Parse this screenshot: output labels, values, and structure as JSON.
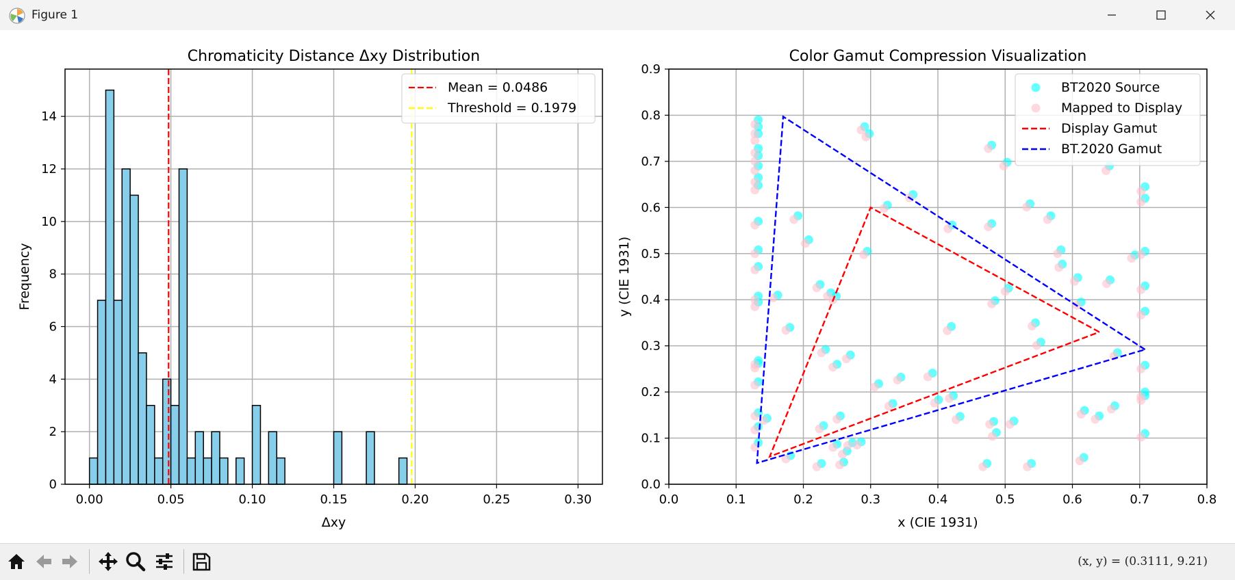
{
  "window": {
    "title": "Figure 1",
    "icons": {
      "app": "matplotlib-icon",
      "minimize": "minimize-icon",
      "maximize": "maximize-icon",
      "close": "close-icon"
    }
  },
  "toolbar": {
    "buttons": [
      "home-icon",
      "back-arrow-icon",
      "forward-arrow-icon",
      "pan-icon",
      "zoom-icon",
      "configure-subplots-icon",
      "save-icon"
    ],
    "coordinates": "(x, y) = (0.3111, 9.21)"
  },
  "chart_data": [
    {
      "type": "bar",
      "title": "Chromaticity Distance Δxy Distribution",
      "xlabel": "Δxy",
      "ylabel": "Frequency",
      "xlim": [
        -0.015,
        0.315
      ],
      "ylim": [
        0,
        15.8
      ],
      "xticks": [
        "0.00",
        "0.05",
        "0.10",
        "0.15",
        "0.20",
        "0.25",
        "0.30"
      ],
      "yticks": [
        "0",
        "2",
        "4",
        "6",
        "8",
        "10",
        "12",
        "14"
      ],
      "grid": true,
      "bar_color": "#87ceeb",
      "bin_start": 0.0,
      "bin_width": 0.005,
      "counts": [
        1,
        7,
        15,
        7,
        12,
        11,
        5,
        3,
        1,
        4,
        3,
        12,
        1,
        2,
        1,
        2,
        1,
        0,
        1,
        0,
        3,
        0,
        2,
        1,
        0,
        0,
        0,
        0,
        0,
        0,
        2,
        0,
        0,
        0,
        2,
        0,
        0,
        0,
        1,
        0
      ],
      "vlines": [
        {
          "label": "Mean = 0.0486",
          "x": 0.0486,
          "color": "#ff0000"
        },
        {
          "label": "Threshold = 0.1979",
          "x": 0.1979,
          "color": "#ffff00"
        }
      ],
      "legend_position": "top-right"
    },
    {
      "type": "scatter",
      "title": "Color Gamut Compression Visualization",
      "xlabel": "x (CIE 1931)",
      "ylabel": "y (CIE 1931)",
      "xlim": [
        0.0,
        0.8
      ],
      "ylim": [
        0.0,
        0.9
      ],
      "xticks": [
        "0.0",
        "0.1",
        "0.2",
        "0.3",
        "0.4",
        "0.5",
        "0.6",
        "0.7",
        "0.8"
      ],
      "yticks": [
        "0.0",
        "0.1",
        "0.2",
        "0.3",
        "0.4",
        "0.5",
        "0.6",
        "0.7",
        "0.8",
        "0.9"
      ],
      "grid": true,
      "legend_position": "top-right",
      "series": [
        {
          "name": "BT2020 Source",
          "color": "#00ffff",
          "alpha": 0.6,
          "style": "points"
        },
        {
          "name": "Mapped to Display",
          "color": "#ffc0cb",
          "alpha": 0.6,
          "style": "points"
        },
        {
          "name": "Display Gamut",
          "color": "#ff0000",
          "style": "dashed-line"
        },
        {
          "name": "BT.2020 Gamut",
          "color": "#0000ff",
          "style": "dashed-line"
        }
      ],
      "display_gamut": [
        [
          0.64,
          0.33
        ],
        [
          0.3,
          0.6
        ],
        [
          0.15,
          0.06
        ],
        [
          0.64,
          0.33
        ]
      ],
      "bt2020_gamut": [
        [
          0.708,
          0.292
        ],
        [
          0.17,
          0.797
        ],
        [
          0.131,
          0.046
        ],
        [
          0.708,
          0.292
        ]
      ],
      "points": [
        [
          0.133,
          0.79,
          0.128,
          0.78
        ],
        [
          0.133,
          0.775,
          0.128,
          0.76
        ],
        [
          0.133,
          0.76,
          0.128,
          0.745
        ],
        [
          0.133,
          0.728,
          0.128,
          0.718
        ],
        [
          0.133,
          0.712,
          0.128,
          0.7
        ],
        [
          0.133,
          0.69,
          0.128,
          0.68
        ],
        [
          0.133,
          0.665,
          0.128,
          0.655
        ],
        [
          0.133,
          0.648,
          0.128,
          0.638
        ],
        [
          0.133,
          0.57,
          0.128,
          0.562
        ],
        [
          0.133,
          0.508,
          0.128,
          0.5
        ],
        [
          0.133,
          0.472,
          0.128,
          0.465
        ],
        [
          0.133,
          0.408,
          0.128,
          0.4
        ],
        [
          0.133,
          0.395,
          0.128,
          0.385
        ],
        [
          0.133,
          0.268,
          0.128,
          0.26
        ],
        [
          0.133,
          0.262,
          0.128,
          0.252
        ],
        [
          0.133,
          0.222,
          0.128,
          0.215
        ],
        [
          0.133,
          0.155,
          0.128,
          0.148
        ],
        [
          0.133,
          0.125,
          0.128,
          0.118
        ],
        [
          0.133,
          0.09,
          0.128,
          0.08
        ],
        [
          0.146,
          0.143,
          0.141,
          0.138
        ],
        [
          0.162,
          0.41,
          0.155,
          0.404
        ],
        [
          0.18,
          0.34,
          0.174,
          0.334
        ],
        [
          0.181,
          0.062,
          0.174,
          0.055
        ],
        [
          0.192,
          0.582,
          0.186,
          0.574
        ],
        [
          0.208,
          0.53,
          0.203,
          0.522
        ],
        [
          0.225,
          0.433,
          0.22,
          0.426
        ],
        [
          0.227,
          0.045,
          0.22,
          0.038
        ],
        [
          0.23,
          0.127,
          0.224,
          0.12
        ],
        [
          0.233,
          0.292,
          0.227,
          0.285
        ],
        [
          0.241,
          0.415,
          0.236,
          0.408
        ],
        [
          0.249,
          0.408,
          0.244,
          0.4
        ],
        [
          0.25,
          0.26,
          0.244,
          0.254
        ],
        [
          0.25,
          0.087,
          0.244,
          0.08
        ],
        [
          0.255,
          0.148,
          0.25,
          0.141
        ],
        [
          0.26,
          0.048,
          0.254,
          0.042
        ],
        [
          0.265,
          0.072,
          0.258,
          0.065
        ],
        [
          0.27,
          0.28,
          0.264,
          0.272
        ],
        [
          0.273,
          0.09,
          0.266,
          0.084
        ],
        [
          0.286,
          0.092,
          0.28,
          0.085
        ],
        [
          0.291,
          0.775,
          0.286,
          0.768
        ],
        [
          0.295,
          0.505,
          0.29,
          0.498
        ],
        [
          0.298,
          0.76,
          0.293,
          0.753
        ],
        [
          0.312,
          0.218,
          0.306,
          0.211
        ],
        [
          0.325,
          0.605,
          0.32,
          0.598
        ],
        [
          0.333,
          0.175,
          0.327,
          0.169
        ],
        [
          0.345,
          0.232,
          0.34,
          0.226
        ],
        [
          0.363,
          0.628,
          0.358,
          0.621
        ],
        [
          0.392,
          0.241,
          0.385,
          0.233
        ],
        [
          0.401,
          0.183,
          0.395,
          0.176
        ],
        [
          0.42,
          0.342,
          0.414,
          0.333
        ],
        [
          0.421,
          0.562,
          0.415,
          0.554
        ],
        [
          0.423,
          0.192,
          0.417,
          0.186
        ],
        [
          0.433,
          0.147,
          0.427,
          0.14
        ],
        [
          0.473,
          0.045,
          0.467,
          0.038
        ],
        [
          0.48,
          0.735,
          0.475,
          0.728
        ],
        [
          0.48,
          0.565,
          0.475,
          0.558
        ],
        [
          0.483,
          0.136,
          0.477,
          0.13
        ],
        [
          0.485,
          0.398,
          0.48,
          0.391
        ],
        [
          0.487,
          0.112,
          0.481,
          0.104
        ],
        [
          0.503,
          0.698,
          0.498,
          0.69
        ],
        [
          0.505,
          0.425,
          0.5,
          0.418
        ],
        [
          0.513,
          0.137,
          0.507,
          0.13
        ],
        [
          0.537,
          0.608,
          0.532,
          0.601
        ],
        [
          0.539,
          0.045,
          0.533,
          0.038
        ],
        [
          0.545,
          0.35,
          0.54,
          0.343
        ],
        [
          0.553,
          0.308,
          0.547,
          0.301
        ],
        [
          0.568,
          0.582,
          0.563,
          0.574
        ],
        [
          0.583,
          0.508,
          0.578,
          0.5
        ],
        [
          0.585,
          0.477,
          0.58,
          0.47
        ],
        [
          0.608,
          0.448,
          0.603,
          0.44
        ],
        [
          0.613,
          0.395,
          0.607,
          0.388
        ],
        [
          0.617,
          0.058,
          0.611,
          0.051
        ],
        [
          0.618,
          0.16,
          0.613,
          0.152
        ],
        [
          0.64,
          0.148,
          0.634,
          0.141
        ],
        [
          0.655,
          0.69,
          0.65,
          0.68
        ],
        [
          0.656,
          0.443,
          0.651,
          0.435
        ],
        [
          0.663,
          0.17,
          0.658,
          0.163
        ],
        [
          0.667,
          0.285,
          0.662,
          0.278
        ],
        [
          0.693,
          0.497,
          0.688,
          0.49
        ],
        [
          0.708,
          0.645,
          0.702,
          0.635
        ],
        [
          0.708,
          0.62,
          0.702,
          0.612
        ],
        [
          0.708,
          0.505,
          0.702,
          0.498
        ],
        [
          0.708,
          0.43,
          0.702,
          0.422
        ],
        [
          0.708,
          0.375,
          0.702,
          0.367
        ],
        [
          0.708,
          0.258,
          0.702,
          0.25
        ],
        [
          0.708,
          0.2,
          0.702,
          0.19
        ],
        [
          0.708,
          0.192,
          0.702,
          0.182
        ],
        [
          0.708,
          0.11,
          0.702,
          0.102
        ]
      ]
    }
  ]
}
